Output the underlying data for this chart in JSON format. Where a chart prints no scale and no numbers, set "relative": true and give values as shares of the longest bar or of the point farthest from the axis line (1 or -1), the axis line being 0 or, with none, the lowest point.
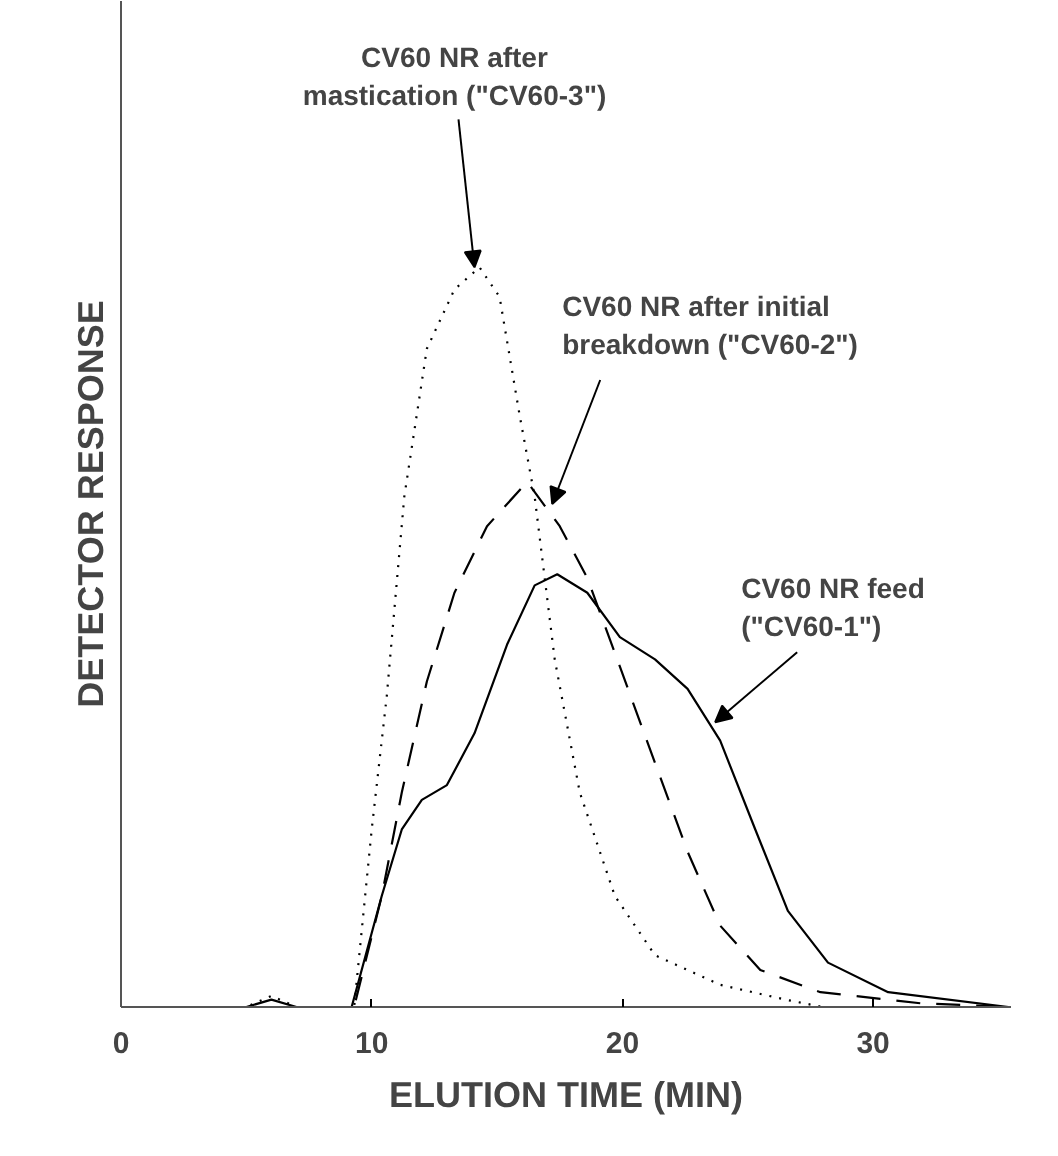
{
  "chart_data": {
    "type": "line",
    "relative": true,
    "xlabel": "ELUTION TIME (MIN)",
    "ylabel": "DETECTOR RESPONSE",
    "xlim": [
      0,
      35.5
    ],
    "xticks": [
      0,
      10,
      20,
      30
    ],
    "grid": false,
    "marker": "none",
    "series": [
      {
        "color": "#000000",
        "line_style": "dotted",
        "x": [
          0,
          5,
          6,
          7,
          9.3,
          10.0,
          10.6,
          11.3,
          12.2,
          13.3,
          14.3,
          15.1,
          15.9,
          16.5,
          17.3,
          18.3,
          19.7,
          21.3,
          23.9,
          26.5,
          28,
          35.5
        ],
        "values": [
          0,
          0,
          0.015,
          0,
          0,
          0.24,
          0.42,
          0.69,
          0.89,
          0.97,
          1.0,
          0.96,
          0.8,
          0.69,
          0.47,
          0.29,
          0.15,
          0.07,
          0.03,
          0.01,
          0,
          0
        ]
      },
      {
        "color": "#000000",
        "line_style": "dashed",
        "x": [
          0,
          9.3,
          10.4,
          11.2,
          12.2,
          13.3,
          14.6,
          16.2,
          17.5,
          18.6,
          19.9,
          21.3,
          22.6,
          23.9,
          25.5,
          27.9,
          31.9,
          35.5
        ],
        "values": [
          0,
          0,
          0.15,
          0.29,
          0.44,
          0.56,
          0.65,
          0.71,
          0.65,
          0.58,
          0.46,
          0.33,
          0.21,
          0.11,
          0.05,
          0.02,
          0.005,
          0
        ]
      },
      {
        "color": "#000000",
        "line_style": "solid",
        "x": [
          0,
          5,
          6,
          7,
          9.2,
          10.4,
          11.2,
          12.0,
          13.0,
          14.1,
          15.4,
          16.5,
          17.4,
          18.6,
          19.9,
          21.3,
          22.6,
          23.9,
          25.3,
          26.6,
          28.2,
          30.6,
          35.4
        ],
        "values": [
          0,
          0,
          0.01,
          0,
          0,
          0.15,
          0.24,
          0.28,
          0.3,
          0.37,
          0.49,
          0.57,
          0.585,
          0.56,
          0.5,
          0.47,
          0.43,
          0.36,
          0.24,
          0.13,
          0.06,
          0.02,
          0
        ]
      }
    ],
    "annotations": [
      {
        "text": "CV60 NR after\nmastication (\"CV60-3\")",
        "x": 14.1,
        "y": 1.0
      },
      {
        "text": "CV60 NR after initial\nbreakdown (\"CV60-2\")",
        "x": 17.2,
        "y": 0.68
      },
      {
        "text": "CV60 NR feed\n(\"CV60-1\")",
        "x": 23.7,
        "y": 0.385
      }
    ]
  }
}
